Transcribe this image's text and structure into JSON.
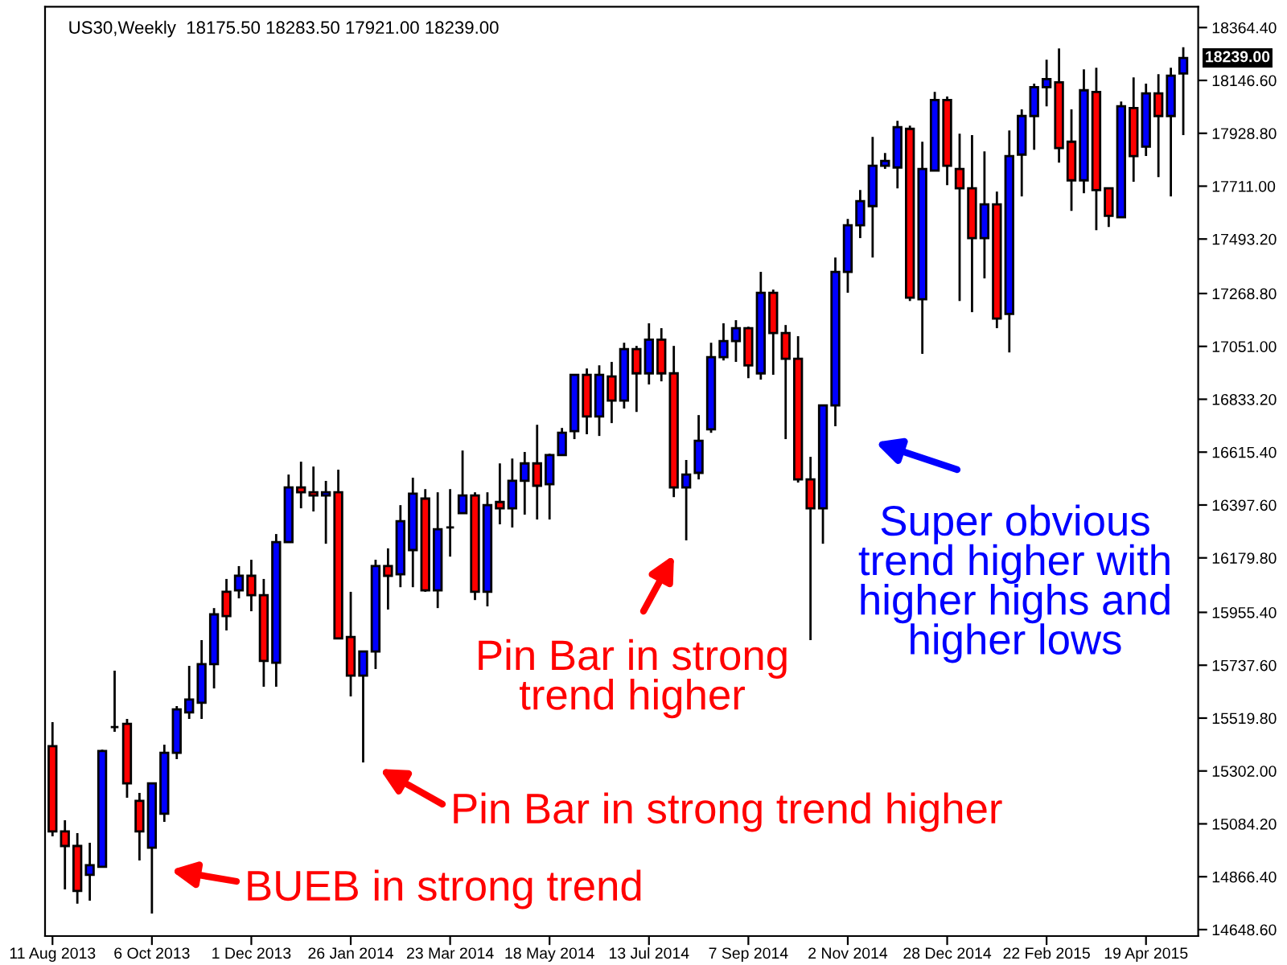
{
  "chart_data": {
    "type": "candlestick",
    "title": "US30,Weekly  18175.50 18283.50 17921.00 18239.00",
    "categories": [
      "11 Aug 2013",
      null,
      null,
      null,
      null,
      null,
      null,
      null,
      "6 Oct 2013",
      null,
      null,
      null,
      null,
      null,
      null,
      null,
      "1 Dec 2013",
      null,
      null,
      null,
      null,
      null,
      null,
      null,
      "26 Jan 2014",
      null,
      null,
      null,
      null,
      null,
      null,
      null,
      "23 Mar 2014",
      null,
      null,
      null,
      null,
      null,
      null,
      null,
      "18 May 2014",
      null,
      null,
      null,
      null,
      null,
      null,
      null,
      "13 Jul 2014",
      null,
      null,
      null,
      null,
      null,
      null,
      null,
      "7 Sep 2014",
      null,
      null,
      null,
      null,
      null,
      null,
      null,
      "2 Nov 2014",
      null,
      null,
      null,
      null,
      null,
      null,
      null,
      "28 Dec 2014",
      null,
      null,
      null,
      null,
      null,
      null,
      null,
      "22 Feb 2015",
      null,
      null,
      null,
      null,
      null,
      null,
      null,
      "19 Apr 2015",
      null,
      null,
      null
    ],
    "ohlc": [
      [
        15404,
        15503,
        15033,
        15053
      ],
      [
        15053,
        15099,
        14814,
        14993
      ],
      [
        14993,
        15046,
        14755,
        14808
      ],
      [
        14874,
        15006,
        14768,
        14914
      ],
      [
        14907,
        15390,
        14907,
        15384
      ],
      [
        15483,
        15715,
        15463,
        15483
      ],
      [
        15496,
        15516,
        15192,
        15251
      ],
      [
        15179,
        15212,
        14933,
        15053
      ],
      [
        14986,
        15251,
        14715,
        15251
      ],
      [
        15126,
        15410,
        15092,
        15377
      ],
      [
        15377,
        15569,
        15351,
        15556
      ],
      [
        15543,
        15735,
        15516,
        15596
      ],
      [
        15583,
        15841,
        15516,
        15742
      ],
      [
        15742,
        15973,
        15642,
        15947
      ],
      [
        16040,
        16093,
        15881,
        15940
      ],
      [
        16046,
        16146,
        16013,
        16106
      ],
      [
        16106,
        16172,
        15960,
        16026
      ],
      [
        16026,
        16093,
        15649,
        15755
      ],
      [
        15748,
        16278,
        15649,
        16245
      ],
      [
        16245,
        16523,
        16245,
        16470
      ],
      [
        16470,
        16576,
        16384,
        16450
      ],
      [
        16450,
        16556,
        16371,
        16437
      ],
      [
        16437,
        16497,
        16238,
        16450
      ],
      [
        16450,
        16543,
        15848,
        15848
      ],
      [
        15854,
        16040,
        15609,
        15695
      ],
      [
        15695,
        15794,
        15337,
        15794
      ],
      [
        15794,
        16172,
        15722,
        16146
      ],
      [
        16146,
        16219,
        15967,
        16106
      ],
      [
        16112,
        16397,
        16059,
        16331
      ],
      [
        16212,
        16510,
        16059,
        16444
      ],
      [
        16424,
        16463,
        16040,
        16046
      ],
      [
        16046,
        16450,
        15973,
        16298
      ],
      [
        16305,
        16463,
        16185,
        16305
      ],
      [
        16364,
        16622,
        16364,
        16437
      ],
      [
        16437,
        16450,
        16006,
        16040
      ],
      [
        16040,
        16450,
        15980,
        16397
      ],
      [
        16410,
        16569,
        16318,
        16384
      ],
      [
        16384,
        16589,
        16305,
        16497
      ],
      [
        16497,
        16616,
        16358,
        16569
      ],
      [
        16569,
        16728,
        16338,
        16477
      ],
      [
        16483,
        16609,
        16338,
        16603
      ],
      [
        16603,
        16715,
        16603,
        16695
      ],
      [
        16702,
        16934,
        16669,
        16934
      ],
      [
        16934,
        16960,
        16689,
        16762
      ],
      [
        16762,
        16973,
        16682,
        16934
      ],
      [
        16927,
        16987,
        16735,
        16828
      ],
      [
        16828,
        17066,
        16795,
        17040
      ],
      [
        17040,
        17053,
        16781,
        16940
      ],
      [
        16940,
        17146,
        16894,
        17079
      ],
      [
        17079,
        17126,
        16907,
        16940
      ],
      [
        16940,
        17053,
        16430,
        16470
      ],
      [
        16470,
        16583,
        16252,
        16523
      ],
      [
        16530,
        16768,
        16503,
        16662
      ],
      [
        16709,
        17066,
        16695,
        17007
      ],
      [
        17007,
        17146,
        16993,
        17073
      ],
      [
        17073,
        17159,
        16987,
        17126
      ],
      [
        17126,
        17132,
        16920,
        16973
      ],
      [
        16940,
        17358,
        16914,
        17272
      ],
      [
        17272,
        17285,
        16934,
        17106
      ],
      [
        17106,
        17139,
        16669,
        17000
      ],
      [
        17000,
        17093,
        16490,
        16503
      ],
      [
        16503,
        16596,
        15841,
        16384
      ],
      [
        16384,
        16808,
        16238,
        16808
      ],
      [
        16808,
        17417,
        16722,
        17358
      ],
      [
        17358,
        17576,
        17272,
        17550
      ],
      [
        17550,
        17695,
        17497,
        17649
      ],
      [
        17629,
        17914,
        17417,
        17795
      ],
      [
        17795,
        17848,
        17782,
        17815
      ],
      [
        17788,
        17980,
        17702,
        17954
      ],
      [
        17947,
        17960,
        17238,
        17252
      ],
      [
        17245,
        17894,
        17020,
        17782
      ],
      [
        17775,
        18099,
        17775,
        18066
      ],
      [
        18066,
        18080,
        17715,
        17795
      ],
      [
        17782,
        17927,
        17238,
        17702
      ],
      [
        17702,
        17921,
        17192,
        17497
      ],
      [
        17497,
        17854,
        17331,
        17636
      ],
      [
        17636,
        17689,
        17126,
        17166
      ],
      [
        17185,
        17940,
        17026,
        17835
      ],
      [
        17841,
        18027,
        17669,
        18000
      ],
      [
        18000,
        18133,
        17861,
        18119
      ],
      [
        18119,
        18232,
        18040,
        18152
      ],
      [
        18139,
        18278,
        17808,
        17868
      ],
      [
        17894,
        18027,
        17609,
        17735
      ],
      [
        17735,
        18192,
        17682,
        18106
      ],
      [
        18099,
        18199,
        17530,
        17695
      ],
      [
        17702,
        17702,
        17543,
        17589
      ],
      [
        17583,
        18060,
        17583,
        18040
      ],
      [
        18033,
        18159,
        17729,
        17835
      ],
      [
        17874,
        18133,
        17835,
        18093
      ],
      [
        18093,
        18172,
        17748,
        18000
      ],
      [
        18000,
        18199,
        17669,
        18166
      ],
      [
        18175.5,
        18283.5,
        17921,
        18239
      ]
    ],
    "colors": [
      "#ff0000",
      "#ff0000",
      "#ff0000",
      "#0000ff",
      "#0000ff",
      "#000000",
      "#ff0000",
      "#ff0000",
      "#0000ff",
      "#0000ff",
      "#0000ff",
      "#0000ff",
      "#0000ff",
      "#0000ff",
      "#ff0000",
      "#0000ff",
      "#ff0000",
      "#ff0000",
      "#0000ff",
      "#0000ff",
      "#ff0000",
      "#ff0000",
      "#0000ff",
      "#ff0000",
      "#ff0000",
      "#0000ff",
      "#0000ff",
      "#ff0000",
      "#0000ff",
      "#0000ff",
      "#ff0000",
      "#0000ff",
      "#000000",
      "#0000ff",
      "#ff0000",
      "#0000ff",
      "#ff0000",
      "#0000ff",
      "#0000ff",
      "#ff0000",
      "#0000ff",
      "#0000ff",
      "#0000ff",
      "#ff0000",
      "#0000ff",
      "#ff0000",
      "#0000ff",
      "#ff0000",
      "#0000ff",
      "#ff0000",
      "#ff0000",
      "#0000ff",
      "#0000ff",
      "#0000ff",
      "#0000ff",
      "#0000ff",
      "#ff0000",
      "#0000ff",
      "#ff0000",
      "#ff0000",
      "#ff0000",
      "#ff0000",
      "#0000ff",
      "#0000ff",
      "#0000ff",
      "#0000ff",
      "#0000ff",
      "#0000ff",
      "#0000ff",
      "#ff0000",
      "#0000ff",
      "#0000ff",
      "#ff0000",
      "#ff0000",
      "#ff0000",
      "#0000ff",
      "#ff0000",
      "#0000ff",
      "#0000ff",
      "#0000ff",
      "#0000ff",
      "#ff0000",
      "#ff0000",
      "#0000ff",
      "#ff0000",
      "#ff0000",
      "#0000ff",
      "#ff0000",
      "#0000ff",
      "#ff0000",
      "#0000ff",
      "#0000ff"
    ],
    "ylim": [
      14622,
      18450
    ],
    "yticks": [
      {
        "value": 18364.4,
        "label": "18364.40"
      },
      {
        "value": 18146.6,
        "label": "18146.60"
      },
      {
        "value": 17928.8,
        "label": "17928.80"
      },
      {
        "value": 17711,
        "label": "17711.00"
      },
      {
        "value": 17493.2,
        "label": "17493.20"
      },
      {
        "value": 17268.8,
        "label": "17268.80"
      },
      {
        "value": 17051,
        "label": "17051.00"
      },
      {
        "value": 16833.2,
        "label": "16833.20"
      },
      {
        "value": 16615.4,
        "label": "16615.40"
      },
      {
        "value": 16397.6,
        "label": "16397.60"
      },
      {
        "value": 16179.8,
        "label": "16179.80"
      },
      {
        "value": 15955.4,
        "label": "15955.40"
      },
      {
        "value": 15737.6,
        "label": "15737.60"
      },
      {
        "value": 15519.8,
        "label": "15519.80"
      },
      {
        "value": 15302,
        "label": "15302.00"
      },
      {
        "value": 15084.2,
        "label": "15084.20"
      },
      {
        "value": 14866.4,
        "label": "14866.40"
      },
      {
        "value": 14648.6,
        "label": "14648.60"
      }
    ],
    "annotations": [
      "18239.00",
      "BUEB in strong trend",
      "Pin Bar in strong trend higher",
      "Pin Bar in strong\ntrend higher",
      "Super obvious\ntrend higher with\nhigher highs and\nhigher lows"
    ],
    "grid": false
  }
}
